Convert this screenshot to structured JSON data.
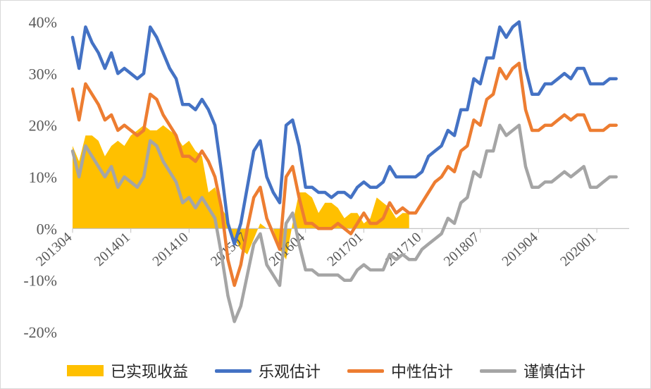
{
  "chart_data": {
    "type": "line",
    "title": "",
    "xlabel": "",
    "ylabel": "",
    "ylim": [
      -0.2,
      0.4
    ],
    "yticks": [
      "40%",
      "30%",
      "20%",
      "10%",
      "0%",
      "-10%",
      "-20%"
    ],
    "ytick_values": [
      0.4,
      0.3,
      0.2,
      0.1,
      0.0,
      -0.1,
      -0.2
    ],
    "x_start": "201304",
    "x_end": "202006",
    "xtick_labels": [
      "201304",
      "201401",
      "201410",
      "201507",
      "201604",
      "201701",
      "201710",
      "201807",
      "201904",
      "202001"
    ],
    "grid": false,
    "legend_position": "bottom",
    "series": [
      {
        "name": "已实现收益",
        "kind": "area",
        "color": "#FFC000",
        "start": "201304",
        "values": [
          0.16,
          0.13,
          0.18,
          0.18,
          0.17,
          0.14,
          0.16,
          0.17,
          0.16,
          0.18,
          0.19,
          0.2,
          0.19,
          0.19,
          0.2,
          0.19,
          0.18,
          0.16,
          0.17,
          0.15,
          0.14,
          0.07,
          0.08,
          0.04,
          0.02,
          -0.02,
          -0.04,
          -0.05,
          -0.02,
          0.01,
          0.0,
          0.0,
          -0.04,
          -0.06,
          0.01,
          0.07,
          0.07,
          0.06,
          0.03,
          0.05,
          0.05,
          0.04,
          0.02,
          0.03,
          0.03,
          0.01,
          0.02,
          0.06,
          0.05,
          0.04,
          0.02,
          0.03,
          0.03
        ]
      },
      {
        "name": "乐观估计",
        "kind": "line",
        "color": "#4472C4",
        "start": "201304",
        "values": [
          0.37,
          0.31,
          0.39,
          0.36,
          0.34,
          0.31,
          0.34,
          0.3,
          0.31,
          0.3,
          0.29,
          0.3,
          0.39,
          0.37,
          0.34,
          0.31,
          0.29,
          0.24,
          0.24,
          0.23,
          0.25,
          0.23,
          0.2,
          0.11,
          0.01,
          -0.03,
          0.01,
          0.08,
          0.15,
          0.17,
          0.1,
          0.07,
          0.05,
          0.2,
          0.21,
          0.16,
          0.08,
          0.08,
          0.07,
          0.07,
          0.06,
          0.07,
          0.07,
          0.06,
          0.08,
          0.09,
          0.08,
          0.08,
          0.09,
          0.12,
          0.1,
          0.1,
          0.1,
          0.1,
          0.11,
          0.14,
          0.15,
          0.16,
          0.19,
          0.18,
          0.23,
          0.23,
          0.29,
          0.28,
          0.33,
          0.33,
          0.39,
          0.37,
          0.39,
          0.4,
          0.31,
          0.26,
          0.26,
          0.28,
          0.28,
          0.29,
          0.3,
          0.29,
          0.31,
          0.31,
          0.28,
          0.28,
          0.28,
          0.29,
          0.29
        ]
      },
      {
        "name": "中性估计",
        "kind": "line",
        "color": "#ED7D31",
        "start": "201304",
        "values": [
          0.27,
          0.21,
          0.28,
          0.26,
          0.24,
          0.21,
          0.22,
          0.19,
          0.2,
          0.19,
          0.18,
          0.19,
          0.26,
          0.25,
          0.22,
          0.2,
          0.18,
          0.14,
          0.14,
          0.13,
          0.15,
          0.13,
          0.1,
          0.04,
          -0.06,
          -0.11,
          -0.07,
          0.0,
          0.06,
          0.08,
          0.02,
          -0.01,
          -0.04,
          0.1,
          0.12,
          0.06,
          0.01,
          0.01,
          0.0,
          0.0,
          0.0,
          0.01,
          0.0,
          -0.01,
          0.01,
          0.03,
          0.01,
          0.01,
          0.02,
          0.05,
          0.03,
          0.04,
          0.03,
          0.03,
          0.05,
          0.07,
          0.09,
          0.1,
          0.12,
          0.11,
          0.15,
          0.16,
          0.21,
          0.2,
          0.25,
          0.26,
          0.31,
          0.29,
          0.31,
          0.32,
          0.23,
          0.19,
          0.19,
          0.2,
          0.2,
          0.21,
          0.22,
          0.21,
          0.22,
          0.22,
          0.19,
          0.19,
          0.19,
          0.2,
          0.2
        ]
      },
      {
        "name": "谨慎估计",
        "kind": "line",
        "color": "#A5A5A5",
        "start": "201304",
        "values": [
          0.15,
          0.1,
          0.16,
          0.14,
          0.12,
          0.1,
          0.12,
          0.08,
          0.1,
          0.09,
          0.08,
          0.1,
          0.17,
          0.16,
          0.13,
          0.11,
          0.09,
          0.05,
          0.06,
          0.04,
          0.06,
          0.04,
          0.02,
          -0.05,
          -0.13,
          -0.18,
          -0.15,
          -0.09,
          -0.03,
          -0.01,
          -0.07,
          -0.09,
          -0.11,
          0.01,
          0.03,
          -0.03,
          -0.08,
          -0.08,
          -0.09,
          -0.09,
          -0.09,
          -0.09,
          -0.1,
          -0.1,
          -0.08,
          -0.07,
          -0.08,
          -0.08,
          -0.08,
          -0.05,
          -0.06,
          -0.05,
          -0.06,
          -0.06,
          -0.04,
          -0.03,
          -0.02,
          -0.01,
          0.02,
          0.01,
          0.05,
          0.06,
          0.11,
          0.1,
          0.15,
          0.15,
          0.2,
          0.18,
          0.19,
          0.2,
          0.12,
          0.08,
          0.08,
          0.09,
          0.09,
          0.1,
          0.11,
          0.1,
          0.11,
          0.12,
          0.08,
          0.08,
          0.09,
          0.1,
          0.1
        ]
      }
    ]
  }
}
